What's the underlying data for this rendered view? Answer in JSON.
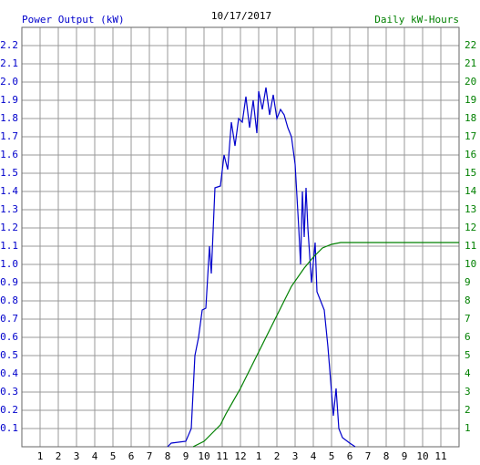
{
  "chart_data": {
    "type": "line",
    "title": "10/17/2017",
    "y_label": "Power Output (kW)",
    "y2_label": "Daily kW-Hours",
    "xlim": [
      0,
      24
    ],
    "xticks": [
      1,
      2,
      3,
      4,
      5,
      6,
      7,
      8,
      9,
      10,
      11,
      12,
      {
        "value": 13,
        "label": "1"
      },
      {
        "value": 14,
        "label": "2"
      },
      {
        "value": 15,
        "label": "3"
      },
      {
        "value": 16,
        "label": "4"
      },
      {
        "value": 17,
        "label": "5"
      },
      {
        "value": 18,
        "label": "6"
      },
      {
        "value": 19,
        "label": "7"
      },
      {
        "value": 20,
        "label": "8"
      },
      {
        "value": 21,
        "label": "9"
      },
      {
        "value": 22,
        "label": "10"
      },
      {
        "value": 23,
        "label": "11"
      }
    ],
    "ylim": [
      0,
      2.3
    ],
    "yticks": [
      0.1,
      0.2,
      0.3,
      0.4,
      0.5,
      0.6,
      0.7,
      0.8,
      0.9,
      {
        "value": 1.0,
        "label": "1.0"
      },
      1.1,
      1.2,
      1.3,
      1.4,
      1.5,
      1.6,
      1.7,
      1.8,
      1.9,
      {
        "value": 2.0,
        "label": "2.0"
      },
      2.1,
      2.2
    ],
    "y2lim": [
      0,
      23
    ],
    "y2ticks": [
      1,
      2,
      3,
      4,
      5,
      6,
      7,
      8,
      9,
      10,
      11,
      12,
      13,
      14,
      15,
      16,
      17,
      18,
      19,
      20,
      21,
      22
    ],
    "grid": true,
    "series": [
      {
        "name": "Power Output (kW)",
        "color": "#0000cc",
        "x": [
          8.0,
          8.2,
          9.0,
          9.3,
          9.5,
          9.7,
          9.9,
          10.1,
          10.3,
          10.4,
          10.6,
          10.9,
          11.1,
          11.3,
          11.5,
          11.7,
          11.9,
          12.1,
          12.3,
          12.5,
          12.7,
          12.9,
          13.0,
          13.2,
          13.4,
          13.6,
          13.8,
          14.0,
          14.2,
          14.4,
          14.6,
          14.8,
          15.0,
          15.2,
          15.3,
          15.4,
          15.5,
          15.6,
          15.7,
          15.9,
          16.1,
          16.2,
          16.4,
          16.6,
          16.8,
          17.0,
          17.1,
          17.25,
          17.4,
          17.6,
          18.0,
          18.3
        ],
        "values": [
          0,
          0.02,
          0.03,
          0.1,
          0.5,
          0.6,
          0.75,
          0.76,
          1.1,
          0.95,
          1.42,
          1.43,
          1.6,
          1.52,
          1.78,
          1.65,
          1.8,
          1.78,
          1.92,
          1.75,
          1.9,
          1.72,
          1.95,
          1.85,
          1.97,
          1.82,
          1.93,
          1.8,
          1.85,
          1.82,
          1.75,
          1.7,
          1.55,
          1.2,
          1.0,
          1.4,
          1.15,
          1.42,
          1.2,
          0.9,
          1.12,
          0.85,
          0.8,
          0.75,
          0.55,
          0.3,
          0.17,
          0.32,
          0.1,
          0.05,
          0.02,
          0
        ]
      },
      {
        "name": "Daily kW-Hours",
        "color": "#008000",
        "axis": "y2",
        "x": [
          9.4,
          10.0,
          10.5,
          10.9,
          11.2,
          12.0,
          13.0,
          14.0,
          14.8,
          15.5,
          16.0,
          16.5,
          17.0,
          17.5,
          24.0
        ],
        "values": [
          0,
          0.3,
          0.8,
          1.2,
          1.8,
          3.2,
          5.2,
          7.2,
          8.8,
          9.8,
          10.4,
          10.9,
          11.1,
          11.2,
          11.2
        ]
      }
    ]
  }
}
